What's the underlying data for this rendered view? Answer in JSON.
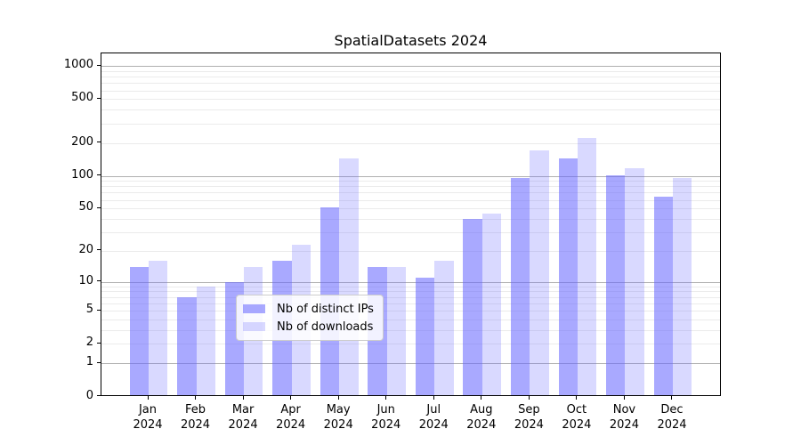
{
  "title": "SpatialDatasets 2024",
  "chart_data": {
    "type": "bar",
    "title": "SpatialDatasets 2024",
    "xlabel": "",
    "ylabel": "",
    "yscale": "log1p",
    "grid": true,
    "legend_position": "lower center",
    "categories": [
      "Jan 2024",
      "Feb 2024",
      "Mar 2024",
      "Apr 2024",
      "May 2024",
      "Jun 2024",
      "Jul 2024",
      "Aug 2024",
      "Sep 2024",
      "Oct 2024",
      "Nov 2024",
      "Dec 2024"
    ],
    "x_tick_line1": [
      "Jan",
      "Feb",
      "Mar",
      "Apr",
      "May",
      "Jun",
      "Jul",
      "Aug",
      "Sep",
      "Oct",
      "Nov",
      "Dec"
    ],
    "x_tick_line2": [
      "2024",
      "2024",
      "2024",
      "2024",
      "2024",
      "2024",
      "2024",
      "2024",
      "2024",
      "2024",
      "2024",
      "2024"
    ],
    "series": [
      {
        "name": "Nb of distinct IPs",
        "color": "rgba(102,102,255,0.56)",
        "values": [
          14,
          7,
          10,
          16,
          51,
          14,
          11,
          40,
          96,
          145,
          101,
          64
        ]
      },
      {
        "name": "Nb of downloads",
        "color": "rgba(102,102,255,0.25)",
        "values": [
          16,
          9,
          14,
          23,
          145,
          14,
          16,
          45,
          170,
          220,
          118,
          96
        ]
      }
    ],
    "y_tick_values": [
      0,
      1,
      2,
      5,
      10,
      20,
      50,
      100,
      200,
      500,
      1000
    ],
    "y_tick_labels": [
      "0",
      "1",
      "2",
      "5",
      "10",
      "20",
      "50",
      "100",
      "200",
      "500",
      "1000"
    ],
    "y_major_gridlines": [
      1,
      10,
      100,
      1000
    ],
    "y_minor_gridlines": [
      2,
      3,
      4,
      5,
      6,
      7,
      8,
      9,
      20,
      30,
      40,
      50,
      60,
      70,
      80,
      90,
      200,
      300,
      400,
      500,
      600,
      700,
      800,
      900
    ],
    "ylim": [
      0,
      1300
    ]
  },
  "colors": {
    "bar_dark": "rgba(102,102,255,0.56)",
    "bar_light": "rgba(102,102,255,0.25)",
    "grid_major": "#b0b0b0",
    "grid_minor": "#ebebeb",
    "spine": "#000000",
    "background": "#ffffff"
  }
}
